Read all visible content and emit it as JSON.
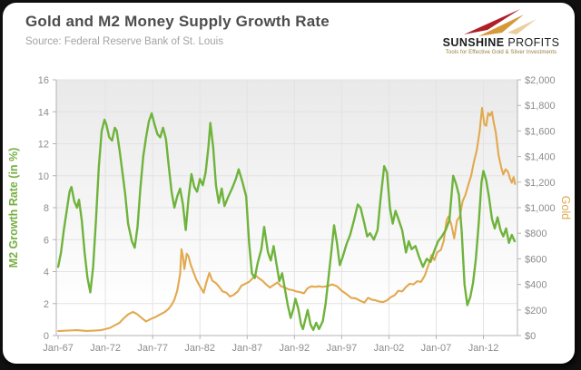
{
  "page": {
    "background": "#111111",
    "card_background": "#ffffff"
  },
  "header": {
    "title": "Gold and M2 Money Supply Growth Rate",
    "source": "Source: Federal Reserve Bank of St. Louis"
  },
  "logo": {
    "brand_bold": "SUNSHINE",
    "brand_regular": " PROFITS",
    "tagline": "Tools for Effective Gold & Silver Investments",
    "arrow_red": "#b01e28",
    "arrow_gold": "#d49a3a",
    "arrow_pale": "#e9cf9d"
  },
  "chart_data": {
    "type": "line",
    "title": "Gold and M2 Money Supply Growth Rate",
    "xlabel": "",
    "grid": true,
    "legend_position": "none",
    "colors": {
      "grid": "#e3e3e3",
      "axis": "#b3b3b3",
      "tick_text": "#8c8c8c",
      "plot_bg_top": "#e9e9e9",
      "plot_bg_bottom": "#ffffff"
    },
    "x_axis": {
      "tick_labels": [
        "Jan-67",
        "Jan-72",
        "Jan-77",
        "Jan-82",
        "Jan-87",
        "Jan-92",
        "Jan-97",
        "Jan-02",
        "Jan-07",
        "Jan-12"
      ],
      "tick_years": [
        1967,
        1972,
        1977,
        1982,
        1987,
        1992,
        1997,
        2002,
        2007,
        2012
      ],
      "range": [
        1966.8,
        2015.6
      ]
    },
    "left_axis": {
      "label": "M2 Growth Rate (in %)",
      "color": "#76b043",
      "range": [
        0,
        16
      ],
      "tick_labels": [
        "0",
        "2",
        "4",
        "6",
        "8",
        "10",
        "12",
        "14",
        "16"
      ],
      "tick_values": [
        0,
        2,
        4,
        6,
        8,
        10,
        12,
        14,
        16
      ]
    },
    "right_axis": {
      "label": "Gold",
      "color": "#dfa94e",
      "range": [
        0,
        2000
      ],
      "tick_labels": [
        "$0",
        "$200",
        "$400",
        "$600",
        "$800",
        "$1,000",
        "$1,200",
        "$1,400",
        "$1,600",
        "$1,800",
        "$2,000"
      ],
      "tick_values": [
        0,
        200,
        400,
        600,
        800,
        1000,
        1200,
        1400,
        1600,
        1800,
        2000
      ]
    },
    "series": [
      {
        "name": "M2 Growth Rate (in %)",
        "axis": "left",
        "color": "#6fb33c",
        "x": [
          1967.0,
          1967.3,
          1967.6,
          1967.9,
          1968.2,
          1968.4,
          1968.7,
          1969.0,
          1969.2,
          1969.5,
          1969.8,
          1970.1,
          1970.4,
          1970.7,
          1971.0,
          1971.3,
          1971.6,
          1971.9,
          1972.1,
          1972.4,
          1972.7,
          1973.0,
          1973.2,
          1973.5,
          1973.8,
          1974.1,
          1974.4,
          1974.8,
          1975.1,
          1975.4,
          1975.7,
          1976.0,
          1976.3,
          1976.6,
          1976.9,
          1977.2,
          1977.5,
          1977.8,
          1978.1,
          1978.4,
          1978.7,
          1979.0,
          1979.3,
          1979.6,
          1979.9,
          1980.2,
          1980.5,
          1980.8,
          1981.1,
          1981.4,
          1981.7,
          1982.0,
          1982.3,
          1982.6,
          1982.9,
          1983.1,
          1983.4,
          1983.7,
          1984.0,
          1984.3,
          1984.6,
          1985.0,
          1985.4,
          1985.8,
          1986.1,
          1986.5,
          1986.9,
          1987.2,
          1987.5,
          1987.8,
          1988.1,
          1988.5,
          1988.8,
          1989.2,
          1989.5,
          1989.8,
          1990.1,
          1990.4,
          1990.7,
          1991.0,
          1991.3,
          1991.6,
          1991.9,
          1992.1,
          1992.4,
          1992.7,
          1992.9,
          1993.2,
          1993.4,
          1993.7,
          1994.0,
          1994.3,
          1994.6,
          1995.0,
          1995.3,
          1995.6,
          1995.9,
          1996.2,
          1996.5,
          1996.8,
          1997.1,
          1997.5,
          1997.9,
          1998.3,
          1998.7,
          1999.0,
          1999.4,
          1999.7,
          2000.0,
          2000.4,
          2000.8,
          2001.1,
          2001.5,
          2001.8,
          2002.1,
          2002.4,
          2002.7,
          2003.0,
          2003.4,
          2003.8,
          2004.1,
          2004.4,
          2004.8,
          2005.2,
          2005.6,
          2006.0,
          2006.4,
          2006.8,
          2007.2,
          2007.6,
          2008.0,
          2008.4,
          2008.8,
          2009.1,
          2009.4,
          2009.7,
          2010.0,
          2010.3,
          2010.6,
          2010.9,
          2011.2,
          2011.5,
          2011.8,
          2012.0,
          2012.3,
          2012.6,
          2012.9,
          2013.2,
          2013.5,
          2013.8,
          2014.1,
          2014.4,
          2014.7,
          2015.0,
          2015.3
        ],
        "values": [
          4.3,
          5.2,
          6.6,
          7.8,
          9.0,
          9.3,
          8.4,
          8.0,
          8.5,
          7.2,
          5.2,
          3.6,
          2.7,
          4.3,
          7.2,
          10.5,
          12.8,
          13.5,
          13.2,
          12.4,
          12.2,
          13.0,
          12.8,
          11.6,
          10.2,
          8.8,
          7.0,
          5.9,
          5.5,
          6.8,
          9.2,
          11.2,
          12.4,
          13.4,
          13.9,
          13.2,
          12.6,
          12.4,
          13.0,
          12.3,
          10.6,
          9.0,
          8.0,
          8.7,
          9.2,
          8.2,
          6.6,
          8.6,
          10.1,
          9.3,
          9.0,
          9.8,
          9.4,
          10.2,
          11.8,
          13.3,
          11.8,
          9.4,
          8.3,
          9.2,
          8.1,
          8.7,
          9.2,
          9.8,
          10.4,
          9.6,
          8.7,
          5.8,
          3.9,
          3.6,
          4.5,
          5.4,
          6.8,
          5.2,
          4.7,
          5.6,
          4.5,
          3.4,
          3.9,
          2.9,
          1.9,
          1.1,
          1.7,
          2.3,
          1.7,
          0.7,
          0.4,
          1.1,
          1.6,
          0.7,
          0.35,
          0.8,
          0.4,
          0.9,
          2.0,
          3.6,
          5.2,
          6.9,
          5.8,
          4.4,
          4.9,
          5.7,
          6.3,
          7.2,
          8.2,
          8.0,
          7.0,
          6.2,
          6.4,
          6.0,
          6.6,
          8.5,
          10.6,
          10.2,
          8.0,
          7.0,
          7.8,
          7.3,
          6.6,
          5.2,
          5.9,
          5.4,
          5.6,
          4.9,
          4.3,
          4.8,
          4.6,
          5.3,
          5.9,
          6.2,
          6.6,
          7.2,
          10.0,
          9.5,
          8.8,
          6.5,
          3.2,
          1.9,
          2.4,
          3.3,
          4.8,
          7.0,
          9.6,
          10.3,
          9.7,
          8.6,
          7.3,
          6.7,
          7.4,
          6.6,
          6.2,
          6.7,
          5.8,
          6.3,
          5.9
        ]
      },
      {
        "name": "Gold",
        "axis": "right",
        "color": "#e2a94f",
        "x": [
          1967.0,
          1968.0,
          1969.0,
          1970.0,
          1970.8,
          1971.5,
          1972.0,
          1972.5,
          1973.0,
          1973.5,
          1974.0,
          1974.4,
          1974.9,
          1975.3,
          1975.8,
          1976.3,
          1976.8,
          1977.3,
          1977.8,
          1978.3,
          1978.7,
          1979.0,
          1979.3,
          1979.6,
          1979.9,
          1980.05,
          1980.2,
          1980.35,
          1980.6,
          1980.8,
          1981.0,
          1981.3,
          1981.6,
          1982.0,
          1982.4,
          1982.7,
          1983.0,
          1983.3,
          1983.7,
          1984.0,
          1984.4,
          1984.8,
          1985.2,
          1985.6,
          1986.0,
          1986.4,
          1986.8,
          1987.2,
          1987.6,
          1987.9,
          1988.2,
          1988.6,
          1989.0,
          1989.4,
          1989.8,
          1990.2,
          1990.6,
          1991.0,
          1991.4,
          1991.8,
          1992.2,
          1992.6,
          1993.0,
          1993.4,
          1993.8,
          1994.2,
          1994.6,
          1995.0,
          1995.4,
          1996.0,
          1996.5,
          1997.0,
          1997.5,
          1998.0,
          1998.5,
          1999.0,
          1999.4,
          1999.8,
          2000.2,
          2000.6,
          2001.0,
          2001.4,
          2001.8,
          2002.2,
          2002.6,
          2003.0,
          2003.4,
          2003.8,
          2004.2,
          2004.6,
          2005.0,
          2005.4,
          2005.8,
          2006.2,
          2006.5,
          2006.8,
          2007.1,
          2007.5,
          2007.8,
          2008.1,
          2008.3,
          2008.6,
          2008.9,
          2009.2,
          2009.5,
          2009.8,
          2010.1,
          2010.4,
          2010.7,
          2011.0,
          2011.3,
          2011.6,
          2011.85,
          2012.1,
          2012.3,
          2012.5,
          2012.7,
          2012.9,
          2013.1,
          2013.3,
          2013.6,
          2013.9,
          2014.1,
          2014.35,
          2014.6,
          2014.8,
          2015.0,
          2015.2,
          2015.35
        ],
        "values": [
          35,
          39,
          42,
          36,
          38,
          42,
          50,
          60,
          80,
          100,
          140,
          165,
          185,
          170,
          140,
          110,
          130,
          145,
          165,
          185,
          210,
          240,
          280,
          350,
          480,
          675,
          620,
          520,
          640,
          620,
          560,
          500,
          440,
          385,
          335,
          420,
          490,
          430,
          410,
          385,
          345,
          335,
          305,
          320,
          345,
          390,
          405,
          420,
          450,
          470,
          450,
          430,
          400,
          375,
          395,
          415,
          385,
          375,
          360,
          355,
          345,
          340,
          330,
          370,
          385,
          380,
          385,
          380,
          385,
          400,
          385,
          350,
          325,
          295,
          290,
          270,
          258,
          295,
          280,
          275,
          265,
          262,
          275,
          300,
          315,
          350,
          345,
          380,
          405,
          400,
          425,
          420,
          470,
          555,
          630,
          590,
          650,
          670,
          740,
          900,
          930,
          870,
          760,
          900,
          930,
          1050,
          1100,
          1180,
          1250,
          1360,
          1450,
          1600,
          1780,
          1650,
          1640,
          1740,
          1720,
          1750,
          1660,
          1590,
          1410,
          1310,
          1260,
          1300,
          1280,
          1230,
          1195,
          1240,
          1185
        ]
      }
    ]
  }
}
